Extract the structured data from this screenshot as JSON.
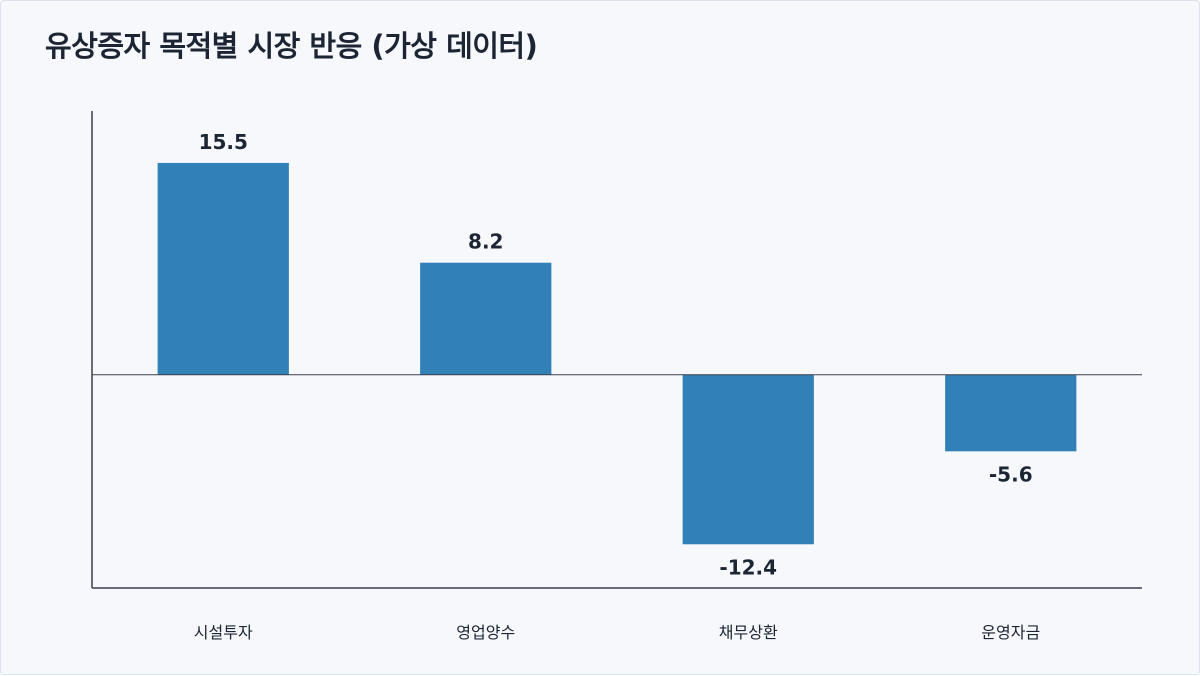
{
  "chart_data": {
    "type": "bar",
    "title": "유상증자 목적별 시장 반응 (가상 데이터)",
    "categories": [
      "시설투자",
      "영업양수",
      "채무상환",
      "운영자금"
    ],
    "values": [
      15.5,
      8.2,
      -12.4,
      -5.6
    ],
    "value_labels": [
      "15.5",
      "8.2",
      "-12.4",
      "-5.6"
    ],
    "xlabel": "",
    "ylabel": "",
    "ylim": [
      -15.6,
      19.3
    ],
    "grid": false,
    "legend": "none",
    "bar_color": "#3180b8",
    "axis_color": "#3a3f4b"
  }
}
